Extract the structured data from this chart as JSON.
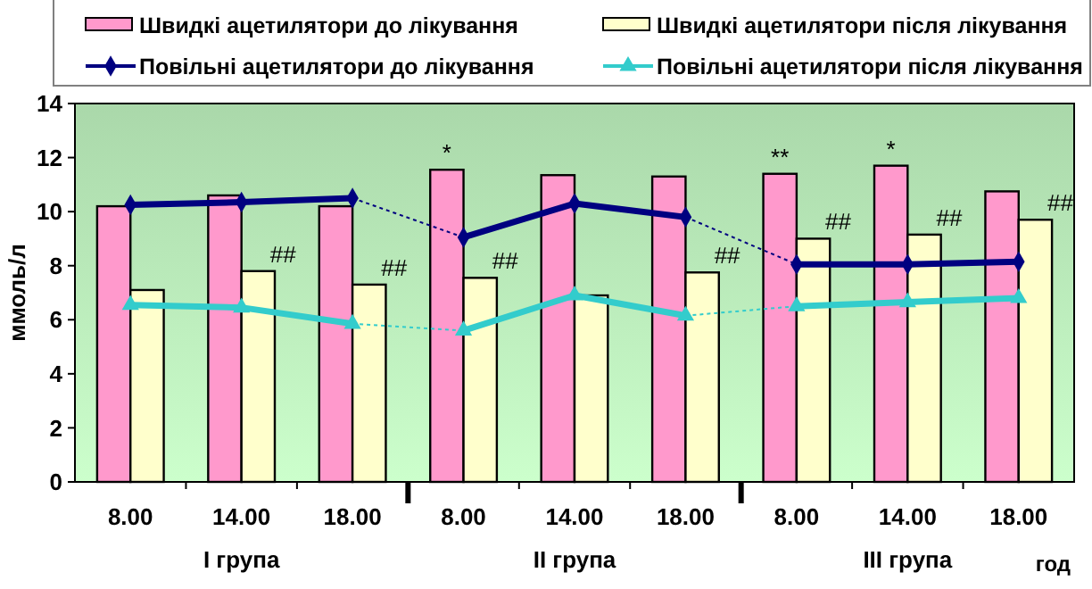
{
  "chart_data": {
    "type": "bar",
    "ylabel": "ммоль/л",
    "categories": [
      "8.00",
      "14.00",
      "18.00",
      "8.00",
      "14.00",
      "18.00",
      "8.00",
      "14.00",
      "18.00"
    ],
    "series": [
      {
        "name": "Швидкі ацетилятори до лікування",
        "color": "#ff99cc",
        "values": [
          10.2,
          10.6,
          10.2,
          11.55,
          11.35,
          11.3,
          11.4,
          11.7,
          10.75
        ],
        "value_labels": [
          null,
          null,
          null,
          "*",
          null,
          null,
          "**",
          "*",
          null
        ]
      },
      {
        "name": "Швидкі ацетилятори після лікування",
        "color": "#ffffcc",
        "values": [
          7.1,
          7.8,
          7.3,
          7.55,
          6.9,
          7.75,
          9.0,
          9.15,
          9.7
        ],
        "value_labels": [
          null,
          "##",
          "##",
          "##",
          null,
          "##",
          "##",
          "##",
          "##"
        ]
      },
      {
        "name": "Повільні ацетилятори до лікування",
        "type": "line",
        "color": "#000080",
        "marker": "diamond",
        "values": [
          10.25,
          10.35,
          10.5,
          9.05,
          10.3,
          9.8,
          8.05,
          8.05,
          8.15
        ]
      },
      {
        "name": "Повільні ацетилятори після лікування",
        "type": "line",
        "color": "#33cccc",
        "marker": "triangle",
        "values": [
          6.55,
          6.45,
          5.85,
          5.6,
          6.9,
          6.15,
          6.5,
          6.65,
          6.8
        ]
      }
    ],
    "ylim": [
      0,
      14
    ],
    "yticks": [
      0,
      2,
      4,
      6,
      8,
      10,
      12,
      14
    ],
    "grid": false,
    "legend": "top",
    "annotations": [
      "I група",
      "II група",
      "III група",
      "год"
    ]
  }
}
